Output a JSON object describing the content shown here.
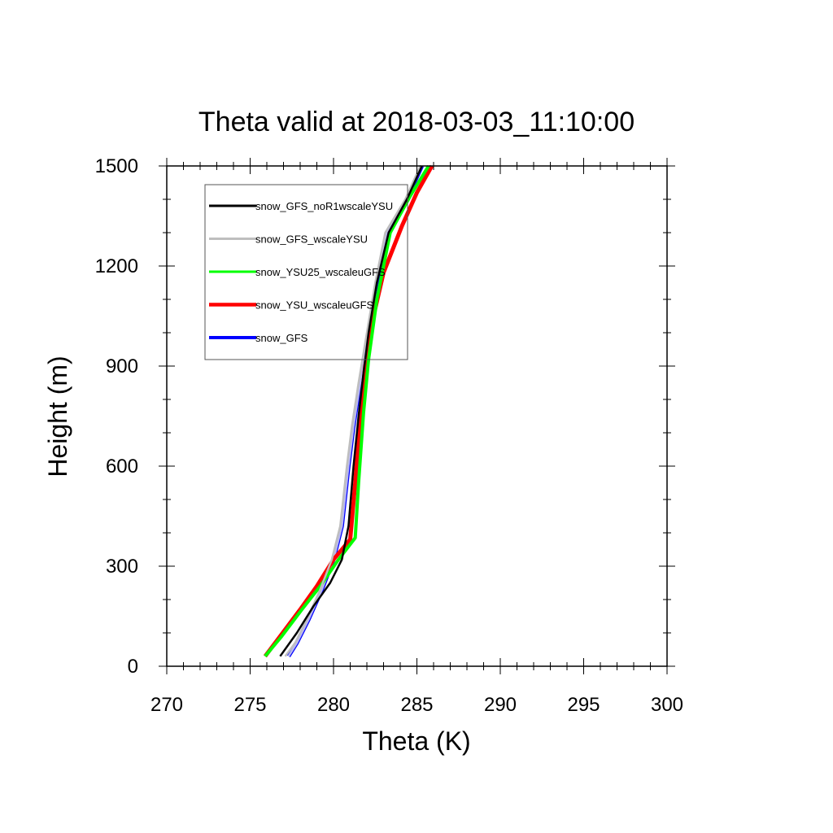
{
  "chart_data": {
    "type": "line",
    "title": "Theta valid at 2018-03-03_11:10:00",
    "xlabel": "Theta (K)",
    "ylabel": "Height (m)",
    "xlim": [
      270,
      300
    ],
    "ylim": [
      0,
      1500
    ],
    "xticks": [
      270,
      275,
      280,
      285,
      290,
      295,
      300
    ],
    "yticks": [
      0,
      300,
      600,
      900,
      1200,
      1500
    ],
    "grid": false,
    "legend_position": "top-left",
    "series": [
      {
        "name": "snow_GFS",
        "color": "#0000ff",
        "points": [
          [
            277.3,
            30
          ],
          [
            277.8,
            70
          ],
          [
            278.5,
            140
          ],
          [
            279.3,
            230
          ],
          [
            280.0,
            320
          ],
          [
            280.5,
            420
          ],
          [
            280.9,
            600
          ],
          [
            281.2,
            720
          ],
          [
            281.6,
            850
          ],
          [
            282.1,
            1000
          ],
          [
            282.6,
            1150
          ],
          [
            283.2,
            1300
          ],
          [
            284.4,
            1400
          ],
          [
            285.3,
            1500
          ]
        ]
      },
      {
        "name": "snow_YSU_wscaleuGFS",
        "color": "#ff0000",
        "points": [
          [
            275.9,
            30
          ],
          [
            276.8,
            90
          ],
          [
            278.0,
            170
          ],
          [
            279.0,
            240
          ],
          [
            280.0,
            320
          ],
          [
            281.0,
            380
          ],
          [
            281.3,
            550
          ],
          [
            281.6,
            750
          ],
          [
            281.9,
            900
          ],
          [
            282.4,
            1050
          ],
          [
            283.0,
            1180
          ],
          [
            284.1,
            1320
          ],
          [
            285.0,
            1420
          ],
          [
            285.9,
            1500
          ]
        ]
      },
      {
        "name": "snow_YSU25_wscaleuGFS",
        "color": "#00ff00",
        "points": [
          [
            275.9,
            30
          ],
          [
            276.9,
            90
          ],
          [
            278.1,
            170
          ],
          [
            279.2,
            240
          ],
          [
            280.3,
            320
          ],
          [
            281.3,
            385
          ],
          [
            281.5,
            550
          ],
          [
            281.8,
            760
          ],
          [
            282.1,
            920
          ],
          [
            282.6,
            1100
          ],
          [
            283.4,
            1300
          ],
          [
            284.6,
            1410
          ],
          [
            285.7,
            1500
          ]
        ]
      },
      {
        "name": "snow_GFS_wscaleYSU",
        "color": "#bebebe",
        "points": [
          [
            277.1,
            30
          ],
          [
            277.7,
            70
          ],
          [
            278.4,
            140
          ],
          [
            279.2,
            230
          ],
          [
            279.9,
            320
          ],
          [
            280.4,
            420
          ],
          [
            280.8,
            600
          ],
          [
            281.1,
            720
          ],
          [
            281.5,
            850
          ],
          [
            282.0,
            1000
          ],
          [
            282.5,
            1150
          ],
          [
            283.1,
            1300
          ],
          [
            284.3,
            1400
          ],
          [
            285.2,
            1500
          ]
        ]
      },
      {
        "name": "snow_GFS_noR1wscaleYSU",
        "color": "#000000",
        "points": [
          [
            276.8,
            30
          ],
          [
            277.8,
            100
          ],
          [
            278.8,
            180
          ],
          [
            279.8,
            250
          ],
          [
            280.5,
            320
          ],
          [
            280.9,
            420
          ],
          [
            281.2,
            600
          ],
          [
            281.5,
            750
          ],
          [
            281.8,
            880
          ],
          [
            282.1,
            1000
          ],
          [
            282.6,
            1150
          ],
          [
            283.3,
            1300
          ],
          [
            284.4,
            1400
          ],
          [
            285.3,
            1500
          ]
        ]
      }
    ],
    "legend_order": [
      "snow_GFS_noR1wscaleYSU",
      "snow_GFS_wscaleYSU",
      "snow_YSU25_wscaleuGFS",
      "snow_YSU_wscaleuGFS",
      "snow_GFS"
    ]
  }
}
